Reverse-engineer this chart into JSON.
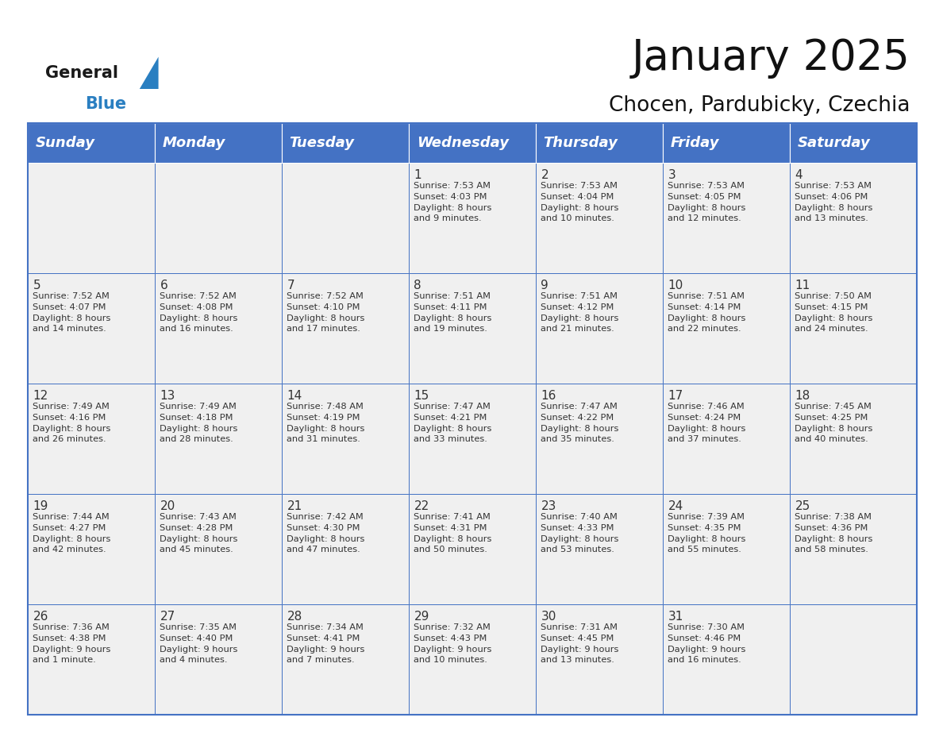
{
  "title": "January 2025",
  "subtitle": "Chocen, Pardubicky, Czechia",
  "header_color": "#4472C4",
  "header_text_color": "#FFFFFF",
  "cell_bg_color": "#F0F0F0",
  "text_color": "#333333",
  "border_color": "#4472C4",
  "days_of_week": [
    "Sunday",
    "Monday",
    "Tuesday",
    "Wednesday",
    "Thursday",
    "Friday",
    "Saturday"
  ],
  "title_fontsize": 38,
  "subtitle_fontsize": 19,
  "header_fontsize": 13,
  "cell_fontsize": 8.2,
  "day_num_fontsize": 11,
  "logo_general_color": "#1a1a1a",
  "logo_blue_color": "#2a7fc1",
  "logo_triangle_color": "#2a7fc1",
  "calendar_data": [
    [
      {
        "day": null,
        "sunrise": null,
        "sunset": null,
        "daylight": null
      },
      {
        "day": null,
        "sunrise": null,
        "sunset": null,
        "daylight": null
      },
      {
        "day": null,
        "sunrise": null,
        "sunset": null,
        "daylight": null
      },
      {
        "day": 1,
        "sunrise": "7:53 AM",
        "sunset": "4:03 PM",
        "daylight": "8 hours\nand 9 minutes."
      },
      {
        "day": 2,
        "sunrise": "7:53 AM",
        "sunset": "4:04 PM",
        "daylight": "8 hours\nand 10 minutes."
      },
      {
        "day": 3,
        "sunrise": "7:53 AM",
        "sunset": "4:05 PM",
        "daylight": "8 hours\nand 12 minutes."
      },
      {
        "day": 4,
        "sunrise": "7:53 AM",
        "sunset": "4:06 PM",
        "daylight": "8 hours\nand 13 minutes."
      }
    ],
    [
      {
        "day": 5,
        "sunrise": "7:52 AM",
        "sunset": "4:07 PM",
        "daylight": "8 hours\nand 14 minutes."
      },
      {
        "day": 6,
        "sunrise": "7:52 AM",
        "sunset": "4:08 PM",
        "daylight": "8 hours\nand 16 minutes."
      },
      {
        "day": 7,
        "sunrise": "7:52 AM",
        "sunset": "4:10 PM",
        "daylight": "8 hours\nand 17 minutes."
      },
      {
        "day": 8,
        "sunrise": "7:51 AM",
        "sunset": "4:11 PM",
        "daylight": "8 hours\nand 19 minutes."
      },
      {
        "day": 9,
        "sunrise": "7:51 AM",
        "sunset": "4:12 PM",
        "daylight": "8 hours\nand 21 minutes."
      },
      {
        "day": 10,
        "sunrise": "7:51 AM",
        "sunset": "4:14 PM",
        "daylight": "8 hours\nand 22 minutes."
      },
      {
        "day": 11,
        "sunrise": "7:50 AM",
        "sunset": "4:15 PM",
        "daylight": "8 hours\nand 24 minutes."
      }
    ],
    [
      {
        "day": 12,
        "sunrise": "7:49 AM",
        "sunset": "4:16 PM",
        "daylight": "8 hours\nand 26 minutes."
      },
      {
        "day": 13,
        "sunrise": "7:49 AM",
        "sunset": "4:18 PM",
        "daylight": "8 hours\nand 28 minutes."
      },
      {
        "day": 14,
        "sunrise": "7:48 AM",
        "sunset": "4:19 PM",
        "daylight": "8 hours\nand 31 minutes."
      },
      {
        "day": 15,
        "sunrise": "7:47 AM",
        "sunset": "4:21 PM",
        "daylight": "8 hours\nand 33 minutes."
      },
      {
        "day": 16,
        "sunrise": "7:47 AM",
        "sunset": "4:22 PM",
        "daylight": "8 hours\nand 35 minutes."
      },
      {
        "day": 17,
        "sunrise": "7:46 AM",
        "sunset": "4:24 PM",
        "daylight": "8 hours\nand 37 minutes."
      },
      {
        "day": 18,
        "sunrise": "7:45 AM",
        "sunset": "4:25 PM",
        "daylight": "8 hours\nand 40 minutes."
      }
    ],
    [
      {
        "day": 19,
        "sunrise": "7:44 AM",
        "sunset": "4:27 PM",
        "daylight": "8 hours\nand 42 minutes."
      },
      {
        "day": 20,
        "sunrise": "7:43 AM",
        "sunset": "4:28 PM",
        "daylight": "8 hours\nand 45 minutes."
      },
      {
        "day": 21,
        "sunrise": "7:42 AM",
        "sunset": "4:30 PM",
        "daylight": "8 hours\nand 47 minutes."
      },
      {
        "day": 22,
        "sunrise": "7:41 AM",
        "sunset": "4:31 PM",
        "daylight": "8 hours\nand 50 minutes."
      },
      {
        "day": 23,
        "sunrise": "7:40 AM",
        "sunset": "4:33 PM",
        "daylight": "8 hours\nand 53 minutes."
      },
      {
        "day": 24,
        "sunrise": "7:39 AM",
        "sunset": "4:35 PM",
        "daylight": "8 hours\nand 55 minutes."
      },
      {
        "day": 25,
        "sunrise": "7:38 AM",
        "sunset": "4:36 PM",
        "daylight": "8 hours\nand 58 minutes."
      }
    ],
    [
      {
        "day": 26,
        "sunrise": "7:36 AM",
        "sunset": "4:38 PM",
        "daylight": "9 hours\nand 1 minute."
      },
      {
        "day": 27,
        "sunrise": "7:35 AM",
        "sunset": "4:40 PM",
        "daylight": "9 hours\nand 4 minutes."
      },
      {
        "day": 28,
        "sunrise": "7:34 AM",
        "sunset": "4:41 PM",
        "daylight": "9 hours\nand 7 minutes."
      },
      {
        "day": 29,
        "sunrise": "7:32 AM",
        "sunset": "4:43 PM",
        "daylight": "9 hours\nand 10 minutes."
      },
      {
        "day": 30,
        "sunrise": "7:31 AM",
        "sunset": "4:45 PM",
        "daylight": "9 hours\nand 13 minutes."
      },
      {
        "day": 31,
        "sunrise": "7:30 AM",
        "sunset": "4:46 PM",
        "daylight": "9 hours\nand 16 minutes."
      },
      {
        "day": null,
        "sunrise": null,
        "sunset": null,
        "daylight": null
      }
    ]
  ]
}
